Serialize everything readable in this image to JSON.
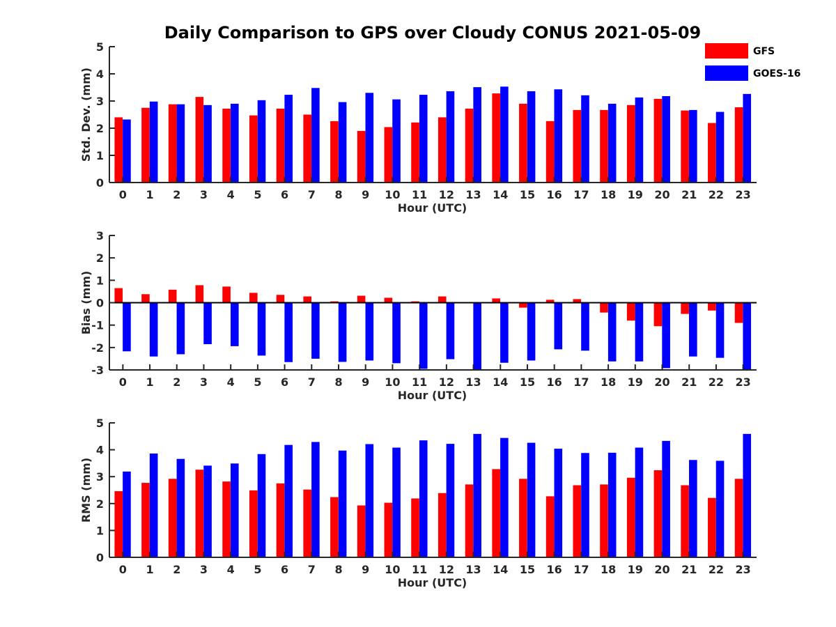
{
  "title": "Daily Comparison to GPS over Cloudy CONUS 2021-05-09",
  "legend": [
    {
      "name": "GFS",
      "color": "#ff0000"
    },
    {
      "name": "GOES-16",
      "color": "#0000ff"
    }
  ],
  "chart_data": [
    {
      "type": "bar",
      "xlabel": "Hour (UTC)",
      "ylabel": "Std. Dev. (mm)",
      "ylim": [
        0,
        5
      ],
      "yticks": [
        0,
        1,
        2,
        3,
        4,
        5
      ],
      "categories": [
        "0",
        "1",
        "2",
        "3",
        "4",
        "5",
        "6",
        "7",
        "8",
        "9",
        "10",
        "11",
        "12",
        "13",
        "14",
        "15",
        "16",
        "17",
        "18",
        "19",
        "20",
        "21",
        "22",
        "23"
      ],
      "series": [
        {
          "name": "GFS",
          "color": "#ff0000",
          "values": [
            2.4,
            2.75,
            2.88,
            3.15,
            2.72,
            2.47,
            2.72,
            2.5,
            2.26,
            1.9,
            2.04,
            2.21,
            2.4,
            2.72,
            3.28,
            2.9,
            2.26,
            2.67,
            2.67,
            2.85,
            3.08,
            2.65,
            2.19,
            2.77
          ]
        },
        {
          "name": "GOES-16",
          "color": "#0000ff",
          "values": [
            2.32,
            2.98,
            2.88,
            2.85,
            2.9,
            3.03,
            3.23,
            3.48,
            2.96,
            3.3,
            3.06,
            3.23,
            3.36,
            3.51,
            3.53,
            3.36,
            3.43,
            3.21,
            2.9,
            3.13,
            3.18,
            2.67,
            2.6,
            3.26
          ]
        }
      ]
    },
    {
      "type": "bar",
      "xlabel": "Hour (UTC)",
      "ylabel": "Bias (mm)",
      "ylim": [
        -3,
        3
      ],
      "yticks": [
        -3,
        -2,
        -1,
        0,
        1,
        2,
        3
      ],
      "categories": [
        "0",
        "1",
        "2",
        "3",
        "4",
        "5",
        "6",
        "7",
        "8",
        "9",
        "10",
        "11",
        "12",
        "13",
        "14",
        "15",
        "16",
        "17",
        "18",
        "19",
        "20",
        "21",
        "22",
        "23"
      ],
      "series": [
        {
          "name": "GFS",
          "color": "#ff0000",
          "values": [
            0.65,
            0.38,
            0.58,
            0.78,
            0.72,
            0.44,
            0.35,
            0.28,
            0.06,
            0.31,
            0.22,
            0.06,
            0.28,
            0.0,
            0.19,
            -0.22,
            0.13,
            0.16,
            -0.44,
            -0.8,
            -1.05,
            -0.5,
            -0.35,
            -0.9
          ]
        },
        {
          "name": "GOES-16",
          "color": "#0000ff",
          "values": [
            -2.17,
            -2.4,
            -2.3,
            -1.85,
            -1.94,
            -2.36,
            -2.65,
            -2.5,
            -2.64,
            -2.58,
            -2.7,
            -2.95,
            -2.52,
            -2.98,
            -2.68,
            -2.58,
            -2.08,
            -2.14,
            -2.62,
            -2.62,
            -2.92,
            -2.4,
            -2.46,
            -3.0
          ]
        }
      ]
    },
    {
      "type": "bar",
      "xlabel": "Hour (UTC)",
      "ylabel": "RMS (mm)",
      "ylim": [
        0,
        5
      ],
      "yticks": [
        0,
        1,
        2,
        3,
        4,
        5
      ],
      "categories": [
        "0",
        "1",
        "2",
        "3",
        "4",
        "5",
        "6",
        "7",
        "8",
        "9",
        "10",
        "11",
        "12",
        "13",
        "14",
        "15",
        "16",
        "17",
        "18",
        "19",
        "20",
        "21",
        "22",
        "23"
      ],
      "series": [
        {
          "name": "GFS",
          "color": "#ff0000",
          "values": [
            2.46,
            2.77,
            2.92,
            3.26,
            2.82,
            2.49,
            2.75,
            2.52,
            2.24,
            1.93,
            2.03,
            2.19,
            2.39,
            2.71,
            3.28,
            2.92,
            2.27,
            2.68,
            2.71,
            2.96,
            3.24,
            2.68,
            2.21,
            2.92
          ]
        },
        {
          "name": "GOES-16",
          "color": "#0000ff",
          "values": [
            3.19,
            3.86,
            3.66,
            3.41,
            3.49,
            3.84,
            4.18,
            4.29,
            3.97,
            4.21,
            4.08,
            4.35,
            4.22,
            4.59,
            4.44,
            4.26,
            4.04,
            3.88,
            3.89,
            4.08,
            4.33,
            3.62,
            3.59,
            4.59
          ]
        }
      ]
    }
  ]
}
